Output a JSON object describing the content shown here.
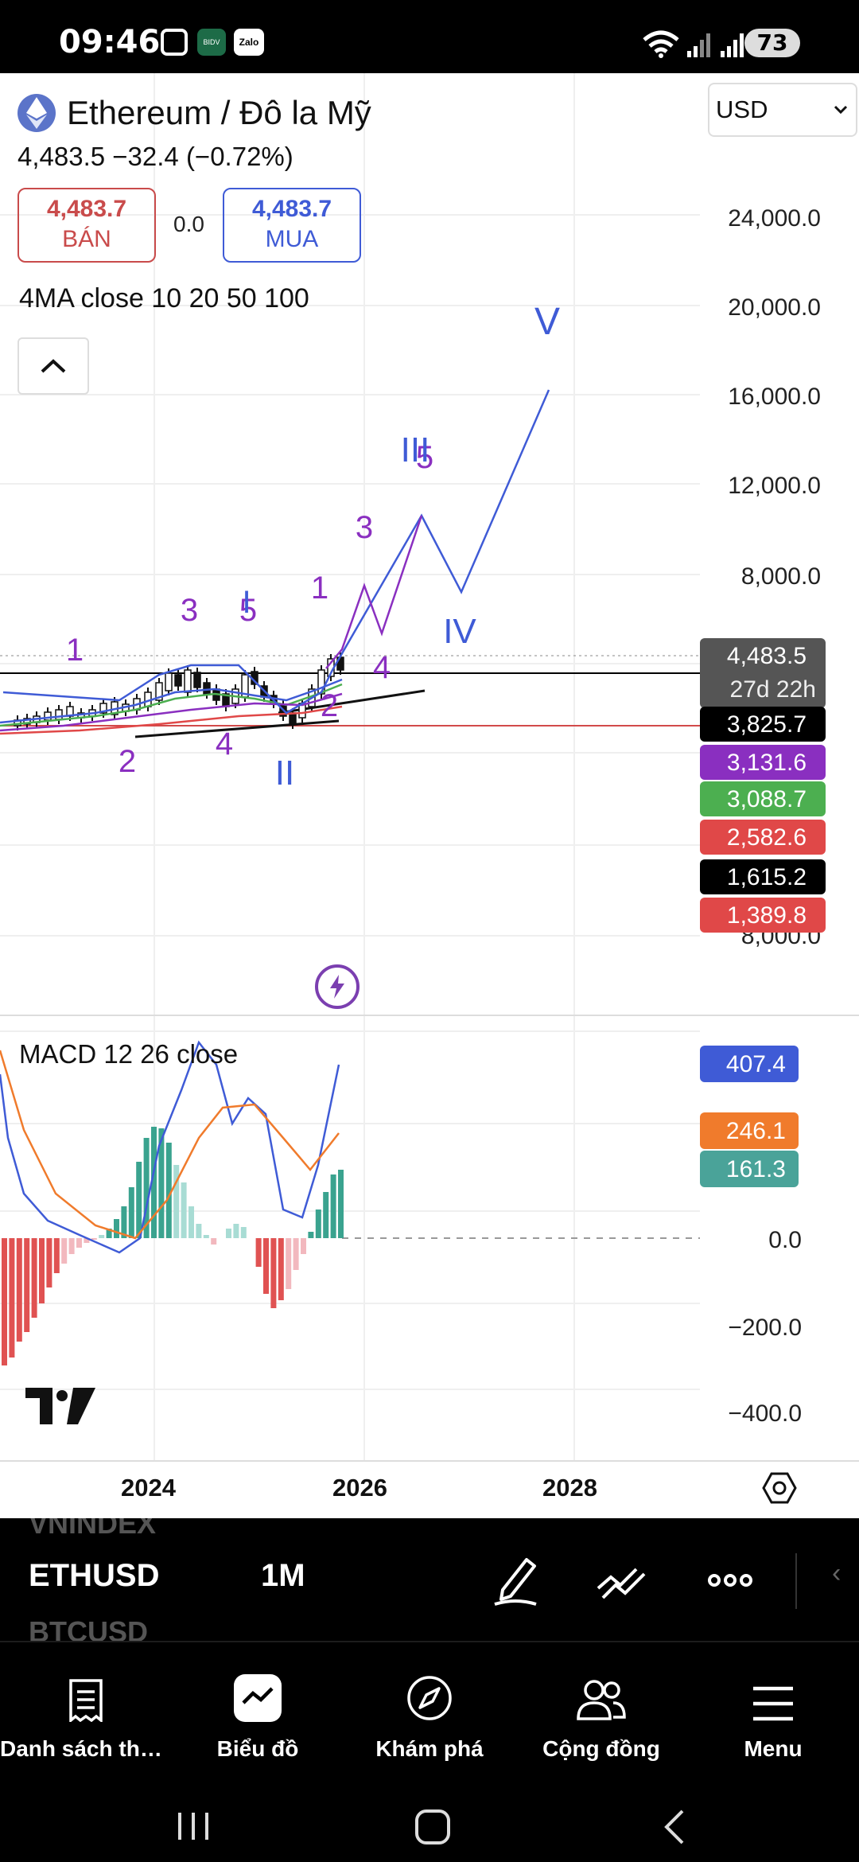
{
  "status_bar": {
    "time": "09:46",
    "battery": "73",
    "app_badges": [
      "BIDV",
      "Zalo"
    ]
  },
  "header": {
    "symbol_title": "Ethereum / Đô la Mỹ",
    "price_line": "4,483.5  −32.4 (−0.72%)",
    "bid": {
      "value": "4,483.7",
      "label": "BÁN",
      "color": "#c94b4b"
    },
    "spread": "0.0",
    "ask": {
      "value": "4,483.7",
      "label": "MUA",
      "color": "#3f5bd6"
    },
    "indicator_label": "4MA close 10 20 50 100",
    "currency": "USD"
  },
  "chart_data": {
    "type": "line",
    "main_scale": {
      "ticks": [
        "24,000.0",
        "20,000.0",
        "16,000.0",
        "12,000.0",
        "8,000.0",
        "8,000.0"
      ],
      "scale": "log"
    },
    "x_ticks": [
      "2024",
      "2026",
      "2028"
    ],
    "price_tags": [
      {
        "label": "4,483.5",
        "sub": "27d 22h",
        "color": "#555555"
      },
      {
        "label": "3,825.7",
        "color": "#000000"
      },
      {
        "label": "3,131.6",
        "color": "#8a2fc0"
      },
      {
        "label": "3,088.7",
        "color": "#4caf50"
      },
      {
        "label": "2,582.6",
        "color": "#e04848"
      },
      {
        "label": "1,615.2",
        "color": "#000000"
      },
      {
        "label": "1,389.8",
        "color": "#e04848"
      }
    ],
    "wave_labels": [
      {
        "text": "1",
        "color": "#8a2fc0"
      },
      {
        "text": "2",
        "color": "#8a2fc0"
      },
      {
        "text": "3",
        "color": "#8a2fc0"
      },
      {
        "text": "4",
        "color": "#8a2fc0"
      },
      {
        "text": "5",
        "color": "#8a2fc0"
      },
      {
        "text": "I",
        "color": "#3f5bd6"
      },
      {
        "text": "II",
        "color": "#3f5bd6"
      },
      {
        "text": "1",
        "color": "#8a2fc0"
      },
      {
        "text": "2",
        "color": "#8a2fc0"
      },
      {
        "text": "3",
        "color": "#8a2fc0"
      },
      {
        "text": "4",
        "color": "#8a2fc0"
      },
      {
        "text": "5",
        "color": "#8a2fc0"
      },
      {
        "text": "III",
        "color": "#3f5bd6"
      },
      {
        "text": "IV",
        "color": "#3f5bd6"
      },
      {
        "text": "V",
        "color": "#3f5bd6"
      }
    ],
    "macd": {
      "label": "MACD 12 26 close",
      "ticks": [
        "0.0",
        "−200.0",
        "−400.0"
      ],
      "tags": [
        {
          "label": "407.4",
          "color": "#3f5bd6"
        },
        {
          "label": "246.1",
          "color": "#f07b2c"
        },
        {
          "label": "161.3",
          "color": "#4aa399"
        }
      ]
    }
  },
  "toolbar": {
    "symbol": "ETHUSD",
    "interval": "1M",
    "ghost_above": "VNINDEX",
    "ghost_below": "BTCUSD"
  },
  "bottom_nav": [
    {
      "label": "Danh sách theo dõi",
      "icon": "watchlist-icon"
    },
    {
      "label": "Biểu đồ",
      "icon": "chart-icon"
    },
    {
      "label": "Khám phá",
      "icon": "compass-icon"
    },
    {
      "label": "Cộng đồng",
      "icon": "community-icon"
    },
    {
      "label": "Menu",
      "icon": "menu-icon"
    }
  ]
}
